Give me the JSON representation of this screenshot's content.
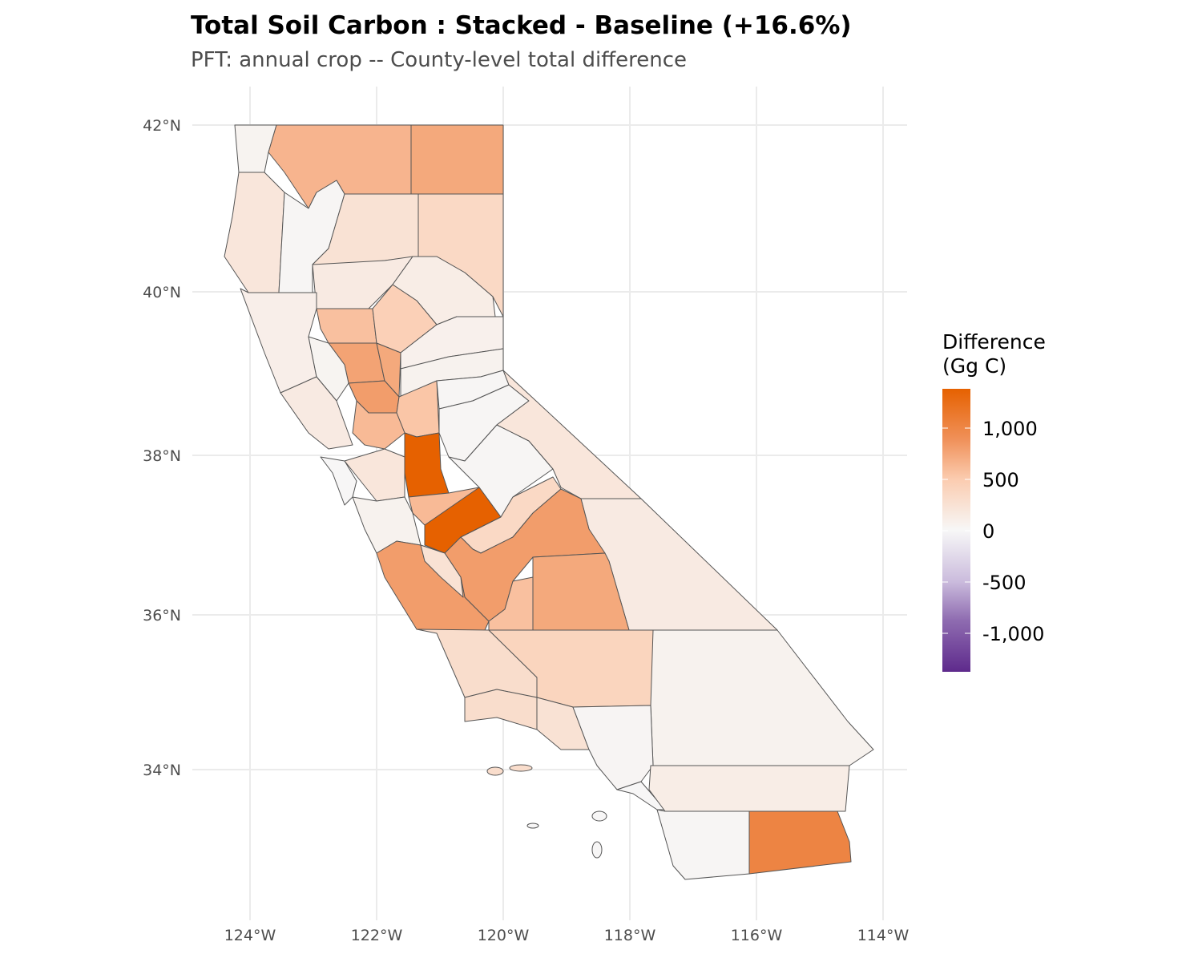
{
  "chart_data": {
    "type": "choropleth",
    "title": "Total Soil Carbon : Stacked - Baseline  (+16.6%)",
    "subtitle": "PFT: annual crop  -- County-level total difference",
    "x_ticks": [
      "124°W",
      "122°W",
      "120°W",
      "118°W",
      "116°W",
      "114°W"
    ],
    "y_ticks": [
      "42°N",
      "40°N",
      "38°N",
      "36°N",
      "34°N"
    ],
    "legend": {
      "title_line1": "Difference",
      "title_line2": "(Gg C)",
      "ticks": [
        "1,000",
        "500",
        "0",
        "-500",
        "-1,000"
      ],
      "tick_values": [
        1000,
        500,
        0,
        -500,
        -1000
      ],
      "range": [
        -1383,
        1383
      ],
      "colors": {
        "low": "#5e2a8c",
        "mid": "#f7f7f7",
        "high": "#e66100"
      },
      "placement": "right"
    },
    "county_values": [
      50,
      700,
      800,
      200,
      20,
      250,
      350,
      150,
      120,
      100,
      600,
      450,
      850,
      800,
      80,
      40,
      60,
      900,
      550,
      20,
      150,
      650,
      20,
      1400,
      10,
      200,
      20,
      650,
      60,
      1400,
      200,
      150,
      350,
      900,
      900,
      250,
      600,
      800,
      300,
      400,
      60,
      300,
      250,
      30,
      10,
      120,
      20,
      1100
    ],
    "island_values": [
      300,
      300,
      10,
      10,
      10
    ]
  }
}
